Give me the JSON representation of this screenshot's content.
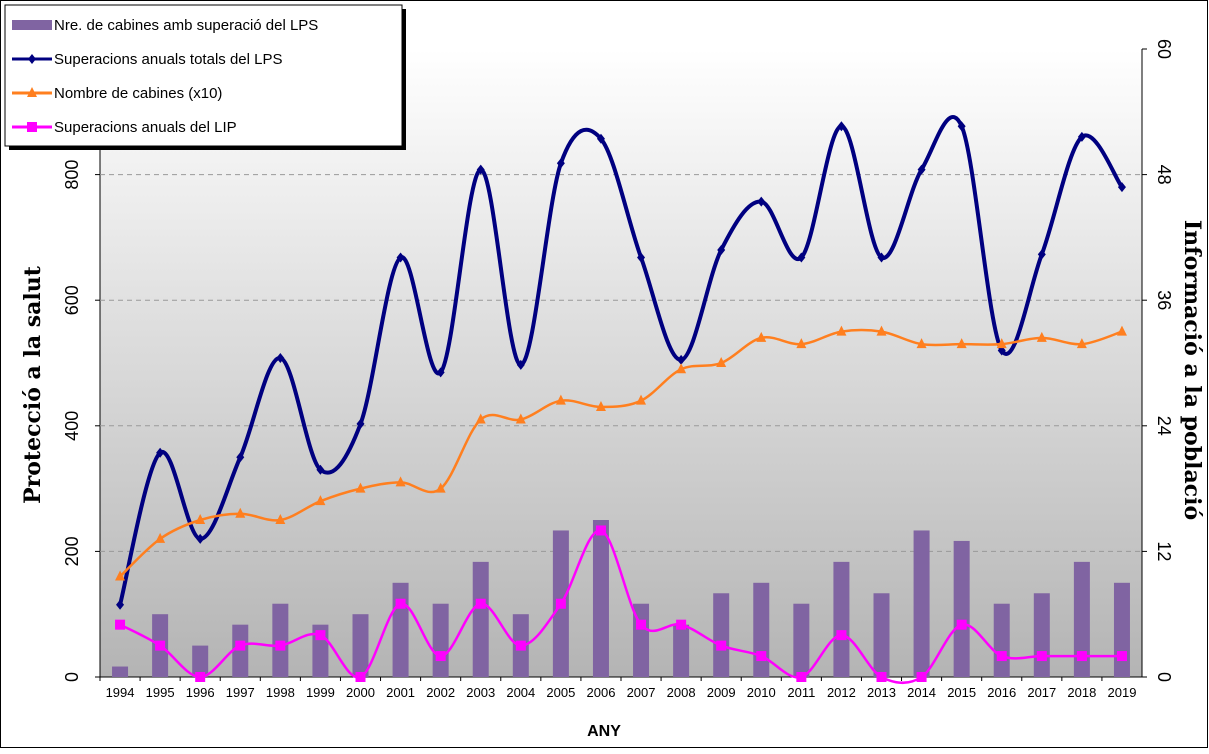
{
  "chart_data": {
    "type": "bar-line",
    "categories": [
      "1994",
      "1995",
      "1996",
      "1997",
      "1998",
      "1999",
      "2000",
      "2001",
      "2002",
      "2003",
      "2004",
      "2005",
      "2006",
      "2007",
      "2008",
      "2009",
      "2010",
      "2011",
      "2012",
      "2013",
      "2014",
      "2015",
      "2016",
      "2017",
      "2018",
      "2019"
    ],
    "series": [
      {
        "name": "Nre. de cabines amb superació del LPS",
        "color": "#8064a2",
        "kind": "bar",
        "axis": "y2",
        "values": [
          1,
          6,
          3,
          5,
          7,
          5,
          6,
          9,
          7,
          11,
          6,
          14,
          15,
          7,
          5,
          8,
          9,
          7,
          11,
          8,
          14,
          13,
          7,
          8,
          11,
          9
        ]
      },
      {
        "name": "Superacions anuals totals del LPS",
        "color": "#000080",
        "kind": "line",
        "marker": "diamond",
        "values": [
          115,
          357,
          220,
          350,
          508,
          330,
          403,
          668,
          485,
          808,
          497,
          818,
          857,
          668,
          505,
          680,
          757,
          668,
          877,
          668,
          808,
          877,
          520,
          673,
          860,
          780
        ]
      },
      {
        "name": "Nombre de cabines (x10)",
        "color": "#ff7f1f",
        "kind": "line",
        "marker": "triangle",
        "values": [
          160,
          220,
          250,
          260,
          250,
          280,
          300,
          310,
          300,
          410,
          410,
          440,
          430,
          440,
          490,
          500,
          540,
          530,
          550,
          550,
          530,
          530,
          530,
          540,
          530,
          550
        ]
      },
      {
        "name": "Superacions anuals del LIP",
        "color": "#ff00ff",
        "kind": "line",
        "marker": "square",
        "axis": "y2",
        "values": [
          5,
          3,
          0,
          3,
          3,
          4,
          0,
          7,
          2,
          7,
          3,
          7,
          14,
          5,
          5,
          3,
          2,
          0,
          4,
          0,
          0,
          5,
          2,
          2,
          2,
          2
        ]
      }
    ],
    "x_label": "ANY",
    "y_label": "Protecció  a  la salut",
    "y2_label": "Informació  a la població",
    "ylim": [
      0,
      1000
    ],
    "yticks": [
      0,
      200,
      400,
      600,
      800
    ],
    "y2lim": [
      0,
      60
    ],
    "y2ticks": [
      0,
      12,
      24,
      36,
      48,
      60
    ],
    "grid": true,
    "legend": "top-left"
  }
}
